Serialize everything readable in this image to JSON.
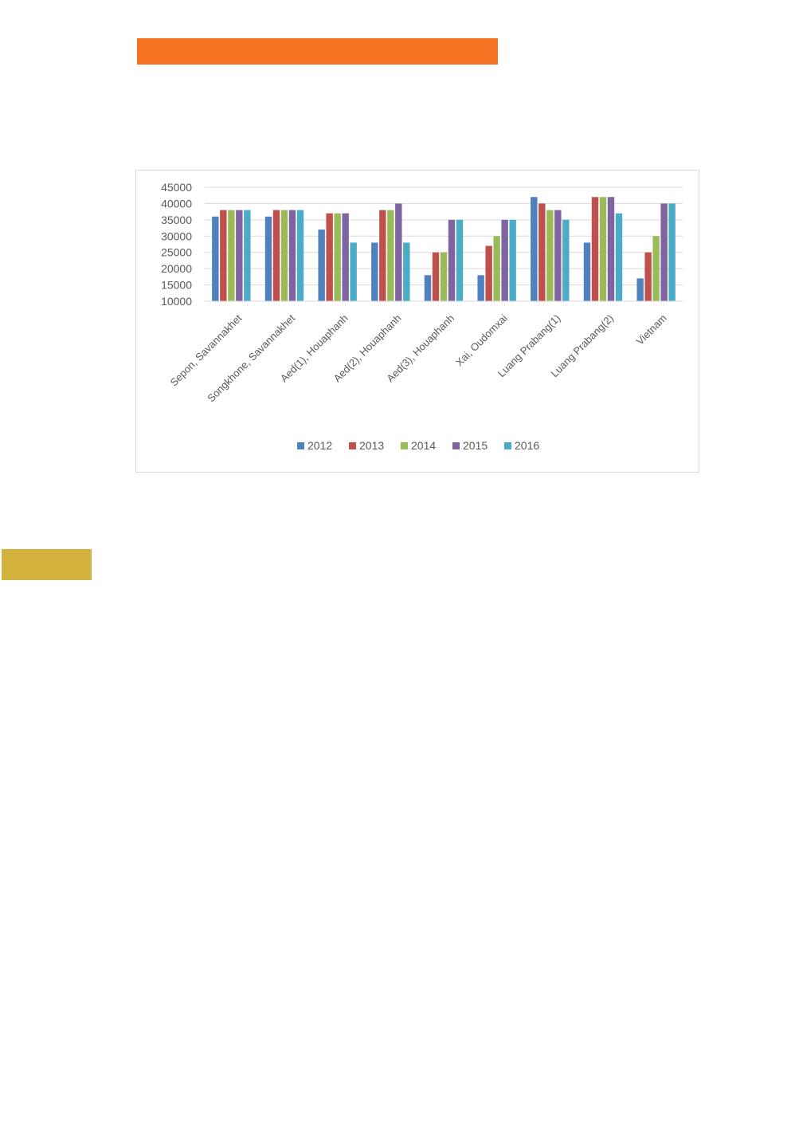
{
  "colors": {
    "header_bar": "#f57223",
    "side_block": "#d4b23e",
    "series": [
      "#4f81bd",
      "#c0504d",
      "#9bbb59",
      "#8064a2",
      "#4bacc6"
    ]
  },
  "chart_data": {
    "type": "bar",
    "categories": [
      "Sepon, Savannakhet",
      "Songkhone, Savannakhet",
      "Aed(1), Houaphanh",
      "Aed(2), Houaphanh",
      "Aed(3), Houaphanh",
      "Xai, Oudomxai",
      "Luang Prabang(1)",
      "Luang Prabang(2)",
      "Vietnam"
    ],
    "series": [
      {
        "name": "2012",
        "values": [
          36000,
          36000,
          32000,
          28000,
          18000,
          18000,
          42000,
          28000,
          17000
        ]
      },
      {
        "name": "2013",
        "values": [
          38000,
          38000,
          37000,
          38000,
          25000,
          27000,
          40000,
          42000,
          25000
        ]
      },
      {
        "name": "2014",
        "values": [
          38000,
          38000,
          37000,
          38000,
          25000,
          30000,
          38000,
          42000,
          30000
        ]
      },
      {
        "name": "2015",
        "values": [
          38000,
          38000,
          37000,
          40000,
          35000,
          35000,
          38000,
          42000,
          40000
        ]
      },
      {
        "name": "2016",
        "values": [
          38000,
          38000,
          28000,
          28000,
          35000,
          35000,
          35000,
          37000,
          40000
        ]
      }
    ],
    "yticks": [
      "10000",
      "15000",
      "20000",
      "25000",
      "30000",
      "35000",
      "40000",
      "45000"
    ],
    "ylim": [
      10000,
      45000
    ],
    "grid": true,
    "legend": "bottom",
    "title": "",
    "xlabel": "",
    "ylabel": ""
  }
}
